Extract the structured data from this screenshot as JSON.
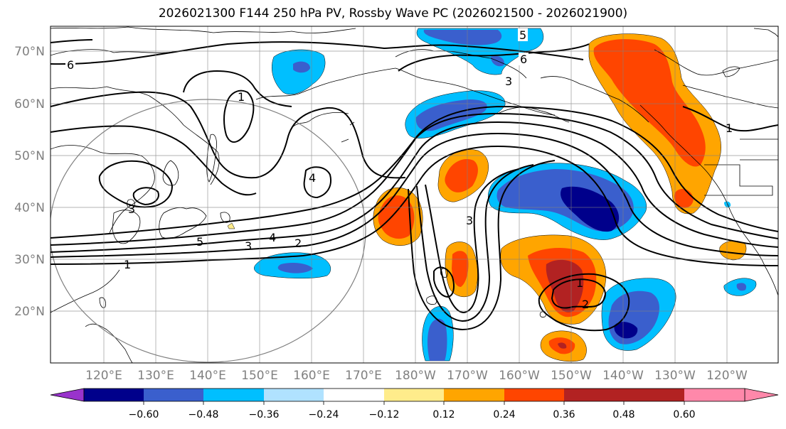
{
  "title": "2026021300 F144 250 hPa PV, Rossby Wave PC (2026021500 - 2026021900)",
  "lat_labels": [
    "70°N",
    "60°N",
    "50°N",
    "40°N",
    "30°N",
    "20°N"
  ],
  "lon_labels": [
    "120°E",
    "130°E",
    "140°E",
    "150°E",
    "160°E",
    "170°E",
    "180°W",
    "170°W",
    "160°W",
    "150°W",
    "140°W",
    "130°W",
    "120°W"
  ],
  "colorbar": {
    "tick_labels": [
      "−0.60",
      "−0.48",
      "−0.36",
      "−0.24",
      "−0.12",
      "0.12",
      "0.24",
      "0.36",
      "0.48",
      "0.60"
    ],
    "colors": [
      "#9933cc",
      "#00008b",
      "#3a5fcd",
      "#00bfff",
      "#b0e2ff",
      "#ffffff",
      "#ffec8b",
      "#ffa500",
      "#ff4500",
      "#b22222",
      "#ff88aa"
    ]
  },
  "contour_labels": [
    {
      "text": "6"
    },
    {
      "text": "5"
    },
    {
      "text": "6"
    },
    {
      "text": "1"
    },
    {
      "text": "4"
    },
    {
      "text": "3"
    },
    {
      "text": "5"
    },
    {
      "text": "4"
    },
    {
      "text": "3"
    },
    {
      "text": "2"
    },
    {
      "text": "1"
    },
    {
      "text": "3"
    },
    {
      "text": "1"
    },
    {
      "text": "2"
    },
    {
      "text": "1"
    },
    {
      "text": "3"
    }
  ]
}
